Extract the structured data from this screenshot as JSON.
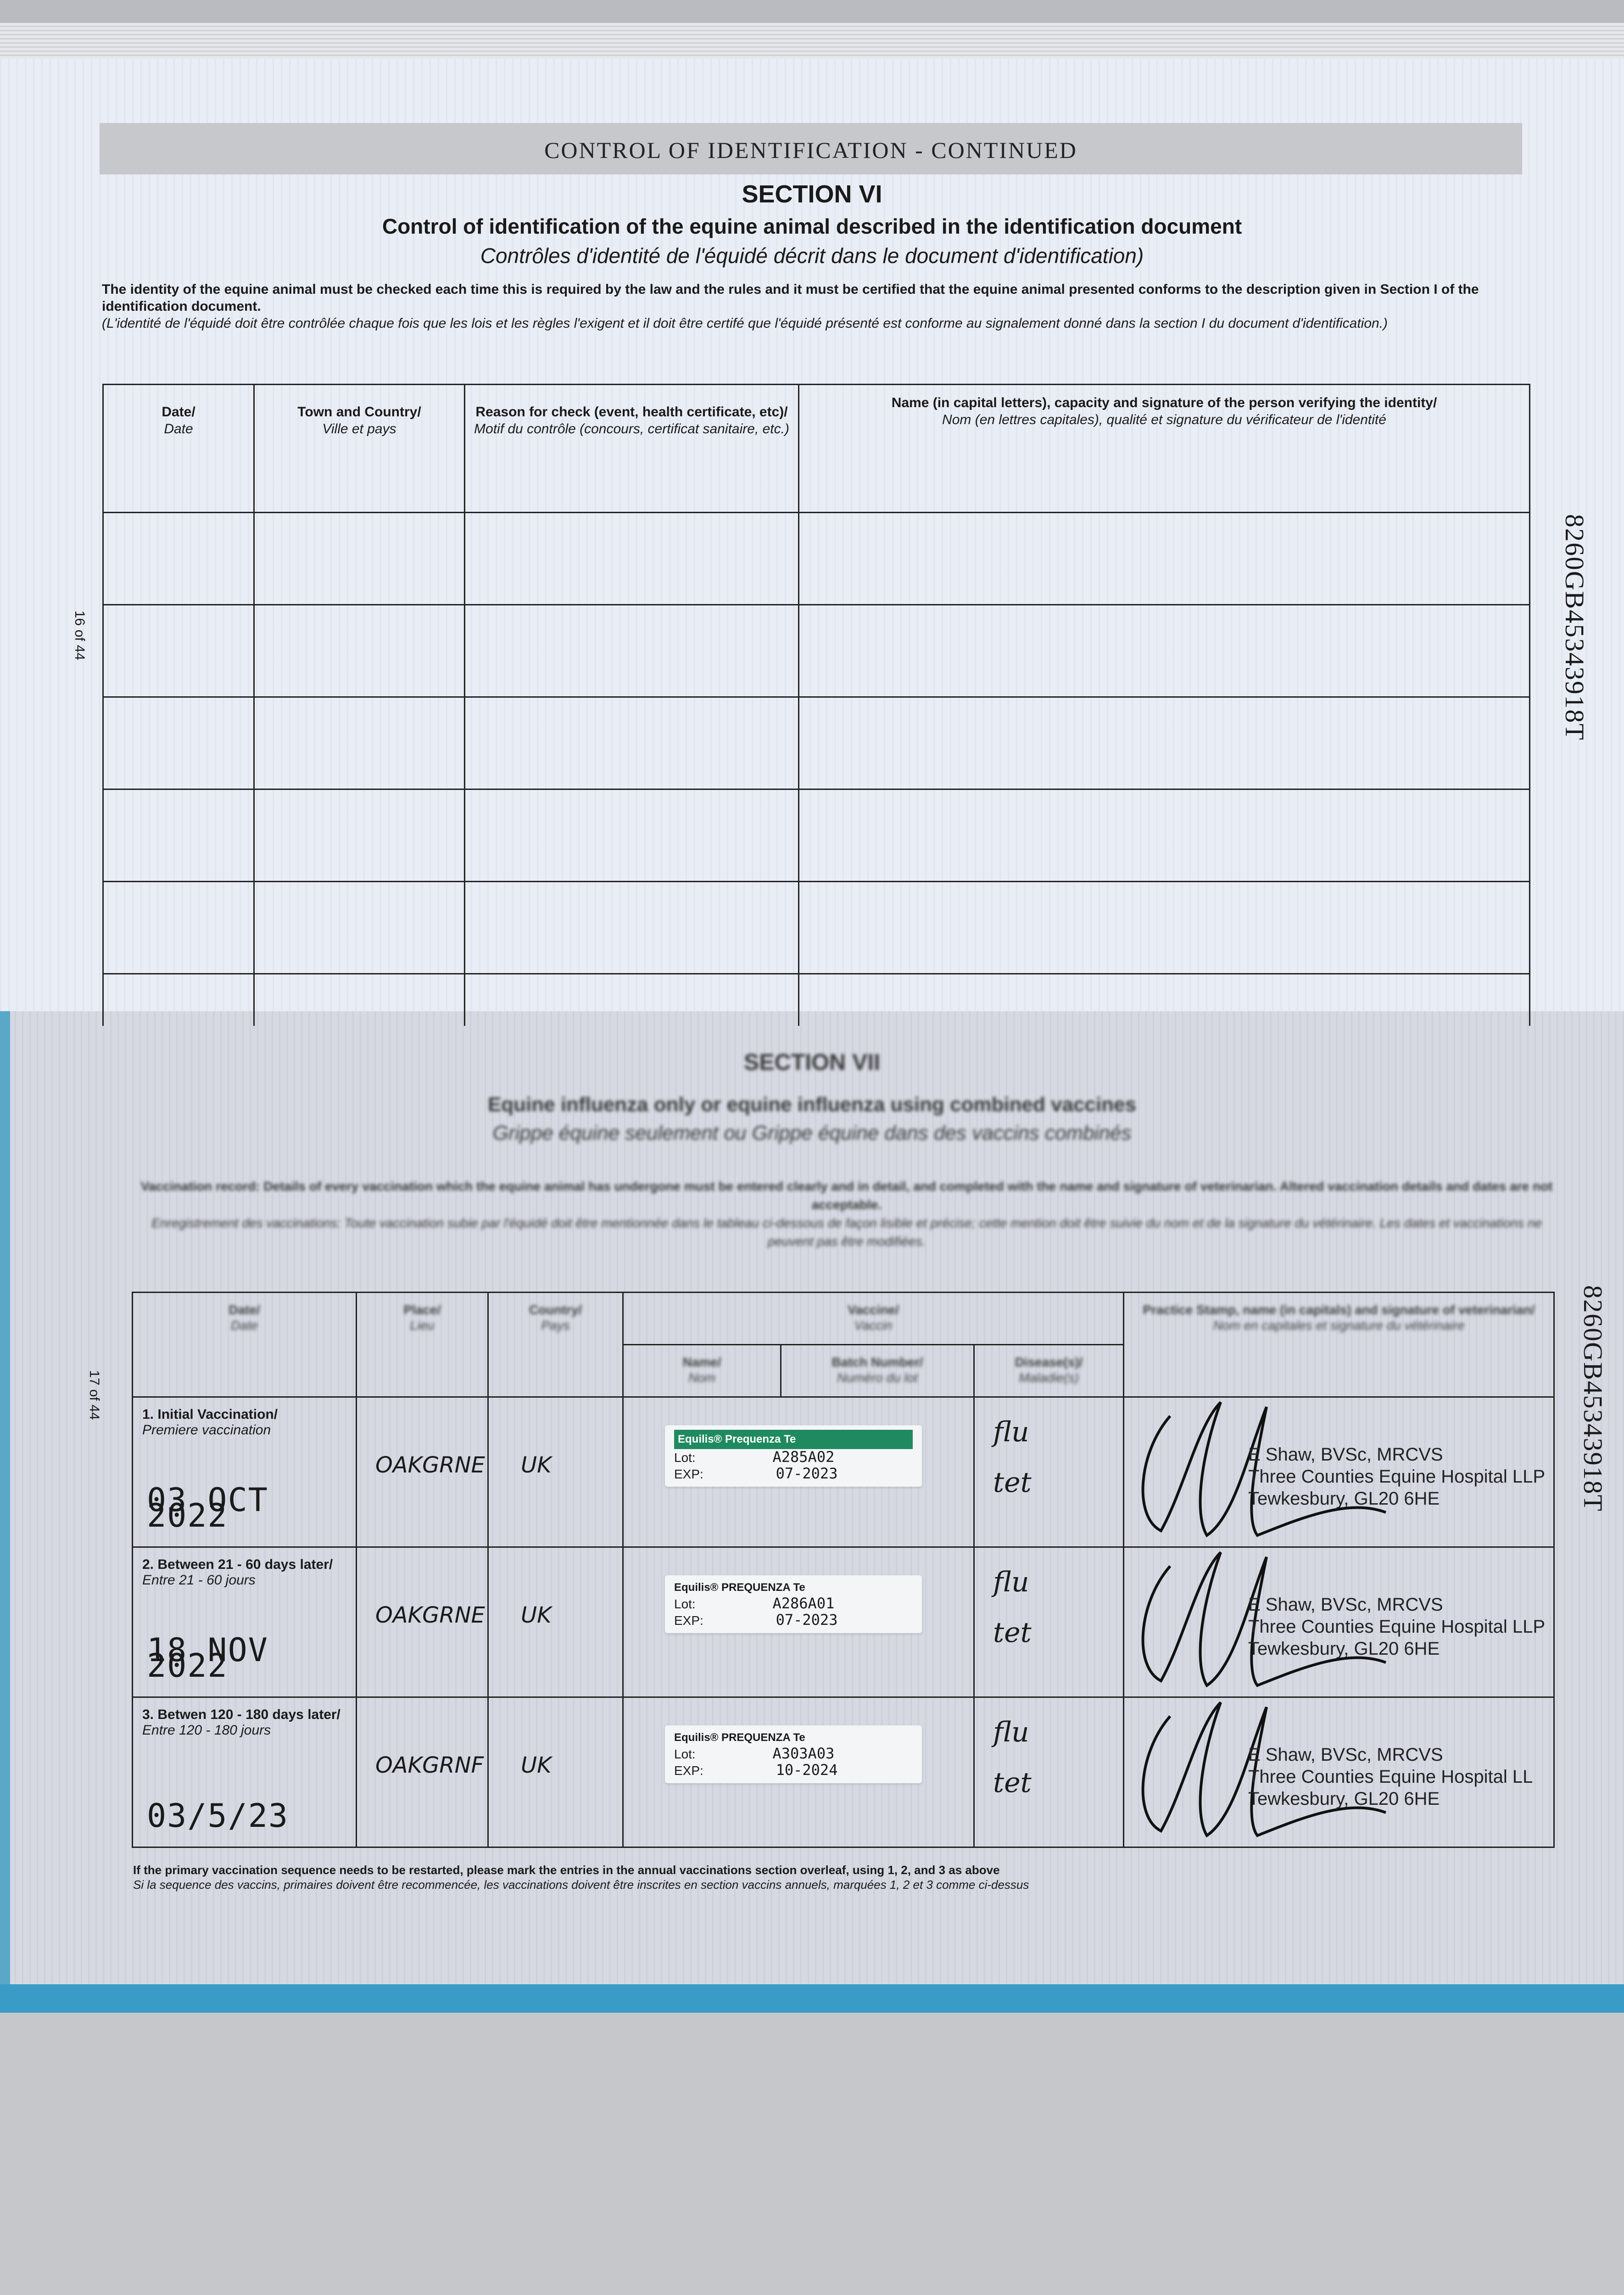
{
  "top_page": {
    "header_band": "CONTROL OF IDENTIFICATION - CONTINUED",
    "section": "SECTION VI",
    "title_en": "Control of identification of the equine animal described in the identification document",
    "title_fr": "Contrôles d'identité de l'équidé décrit dans le document d'identification)",
    "intro_en": "The identity of the equine animal must be checked each time this is required by the law and the rules and it must be certified that the equine animal presented conforms to the description given in Section I of the identification document.",
    "intro_fr": "(L'identité de l'équidé doit être contrôlée chaque fois que les lois et les règles l'exigent et il doit être certifé que l'équidé présenté est conforme au signalement donné dans la section I du document d'identification.)",
    "page_number": "16 of 44",
    "id_number": "8260GB45343918T",
    "table": {
      "headers": [
        {
          "en": "Date/",
          "fr": "Date"
        },
        {
          "en": "Town and Country/",
          "fr": "Ville et pays"
        },
        {
          "en": "Reason for check (event, health certificate, etc)/",
          "fr": "Motif du contrôle (concours, certificat sanitaire, etc.)"
        },
        {
          "en": "Name (in capital letters), capacity and signature of the person verifying the identity/",
          "fr": "Nom (en lettres capitales), qualité et signature du vérificateur de l'identité"
        }
      ]
    }
  },
  "bottom_page": {
    "section": "SECTION VII",
    "title_en": "Equine influenza only or equine influenza using combined vaccines",
    "title_fr": "Grippe équine seulement ou Grippe équine dans des vaccins combinés",
    "intro_en": "Vaccination record: Details of every vaccination which the equine animal has undergone must be entered clearly and in detail, and completed with the name and signature of veterinarian. Altered vaccination details and dates are not acceptable.",
    "intro_fr": "Enregistrement des vaccinations: Toute vaccination subie par l'équidé doit être mentionnée dans le tableau ci-dessous de façon lisible et précise; cette mention doit être suivie du nom et de la signature du vétérinaire. Les dates et vaccinations ne peuvent pas être modifiées.",
    "page_number": "17 of 44",
    "id_number": "8260GB45343918T",
    "table": {
      "headers": {
        "date": {
          "en": "Date/",
          "fr": "Date"
        },
        "place": {
          "en": "Place/",
          "fr": "Lieu"
        },
        "country": {
          "en": "Country/",
          "fr": "Pays"
        },
        "vaccine": {
          "en": "Vaccine/",
          "fr": "Vaccin"
        },
        "name": {
          "en": "Name/",
          "fr": "Nom"
        },
        "batch": {
          "en": "Batch Number/",
          "fr": "Numéro du lot"
        },
        "disease": {
          "en": "Disease(s)/",
          "fr": "Maladie(s)"
        },
        "stamp": {
          "en": "Practice Stamp, name (in capitals) and signature of veterinarian/",
          "fr": "Nom en capitales et signature du vétérinaire"
        }
      },
      "rows": [
        {
          "label_en": "1. Initial Vaccination/",
          "label_fr": "Premiere vaccination",
          "date": "03 OCT 2022",
          "place": "OAKGRNE",
          "country": "UK",
          "vaccine_brand": "Equilis® Prequenza Te",
          "lot_label": "Lot:",
          "lot": "A285A02",
          "exp_label": "EXP:",
          "exp": "07-2023",
          "disease_1": "flu",
          "disease_2": "tet",
          "vet_name": "E Shaw, BVSc, MRCVS",
          "vet_practice": "Three Counties Equine Hospital LLP",
          "vet_address": "Tewkesbury, GL20 6HE"
        },
        {
          "label_en": "2. Between 21 - 60 days later/",
          "label_fr": "Entre 21 - 60 jours",
          "date": "18 NOV 2022",
          "place": "OAKGRNE",
          "country": "UK",
          "vaccine_brand": "Equilis® PREQUENZA Te",
          "lot_label": "Lot:",
          "lot": "A286A01",
          "exp_label": "EXP:",
          "exp": "07-2023",
          "disease_1": "flu",
          "disease_2": "tet",
          "vet_name": "E Shaw, BVSc, MRCVS",
          "vet_practice": "Three Counties Equine Hospital LLP",
          "vet_address": "Tewkesbury, GL20 6HE"
        },
        {
          "label_en": "3. Betwen 120 - 180 days later/",
          "label_fr": "Entre 120 - 180 jours",
          "date": "03/5/23",
          "place": "OAKGRNF",
          "country": "UK",
          "vaccine_brand": "Equilis® PREQUENZA Te",
          "lot_label": "Lot:",
          "lot": "A303A03",
          "exp_label": "EXP:",
          "exp": "10-2024",
          "disease_1": "flu",
          "disease_2": "tet",
          "vet_name": "E Shaw, BVSc, MRCVS",
          "vet_practice": "Three Counties Equine Hospital LL",
          "vet_address": "Tewkesbury, GL20 6HE"
        }
      ]
    },
    "footer_en": "If the primary vaccination sequence needs to be restarted, please mark the entries in the annual vaccinations section overleaf, using 1, 2, and 3 as above",
    "footer_fr": "Si la sequence des vaccins, primaires doivent être recommencée, les vaccinations doivent être inscrites en section vaccins annuels, marquées 1, 2 et 3 comme ci-dessus"
  },
  "colors": {
    "paper_top": "#e9edf5",
    "paper_bottom": "#d6d9e2",
    "teal_stripe": "#3a9cc6",
    "sticker_green": "#1f8a5f",
    "header_band": "#c7c8cc"
  }
}
